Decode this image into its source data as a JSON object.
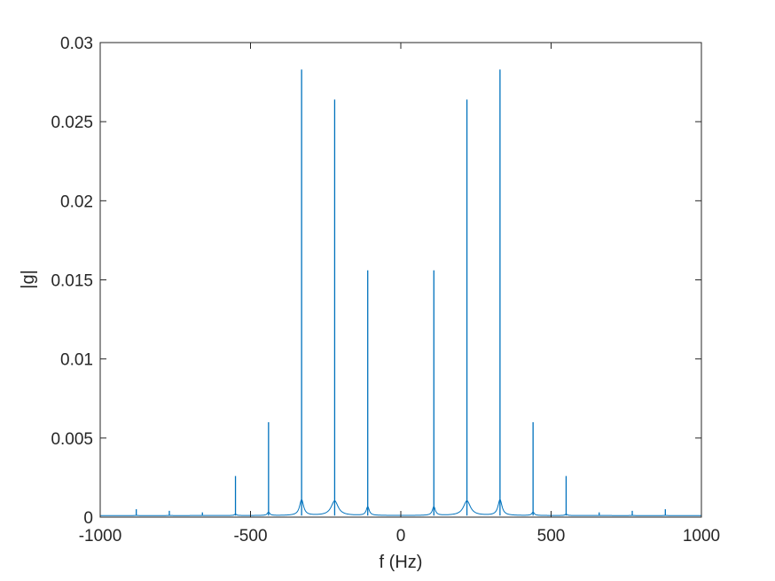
{
  "chart_data": {
    "type": "line",
    "title": "",
    "xlabel": "f (Hz)",
    "ylabel": "|g|",
    "xlim": [
      -1000,
      1000
    ],
    "ylim": [
      0,
      0.03
    ],
    "x_ticks": [
      -1000,
      -500,
      0,
      500,
      1000
    ],
    "x_tick_labels": [
      "-1000",
      "-500",
      "0",
      "500",
      "1000"
    ],
    "y_ticks": [
      0,
      0.005,
      0.01,
      0.015,
      0.02,
      0.025,
      0.03
    ],
    "y_tick_labels": [
      "0",
      "0.005",
      "0.01",
      "0.015",
      "0.02",
      "0.025",
      "0.03"
    ],
    "grid": false,
    "legend": "none",
    "line_color": "#0072BD",
    "baseline": 0.0001,
    "peaks": [
      {
        "f": -880,
        "mag": 0.0005,
        "width": 2
      },
      {
        "f": -770,
        "mag": 0.0004,
        "width": 2
      },
      {
        "f": -660,
        "mag": 0.0003,
        "width": 2
      },
      {
        "f": -550,
        "mag": 0.0026,
        "width": 4
      },
      {
        "f": -440,
        "mag": 0.006,
        "width": 5
      },
      {
        "f": -330,
        "mag": 0.0283,
        "width": 8
      },
      {
        "f": -220,
        "mag": 0.0264,
        "width": 14
      },
      {
        "f": -110,
        "mag": 0.0156,
        "width": 6
      },
      {
        "f": 110,
        "mag": 0.0156,
        "width": 6
      },
      {
        "f": 220,
        "mag": 0.0264,
        "width": 14
      },
      {
        "f": 330,
        "mag": 0.0283,
        "width": 8
      },
      {
        "f": 440,
        "mag": 0.006,
        "width": 5
      },
      {
        "f": 550,
        "mag": 0.0026,
        "width": 4
      },
      {
        "f": 660,
        "mag": 0.0003,
        "width": 2
      },
      {
        "f": 770,
        "mag": 0.0004,
        "width": 2
      },
      {
        "f": 880,
        "mag": 0.0005,
        "width": 2
      }
    ]
  }
}
